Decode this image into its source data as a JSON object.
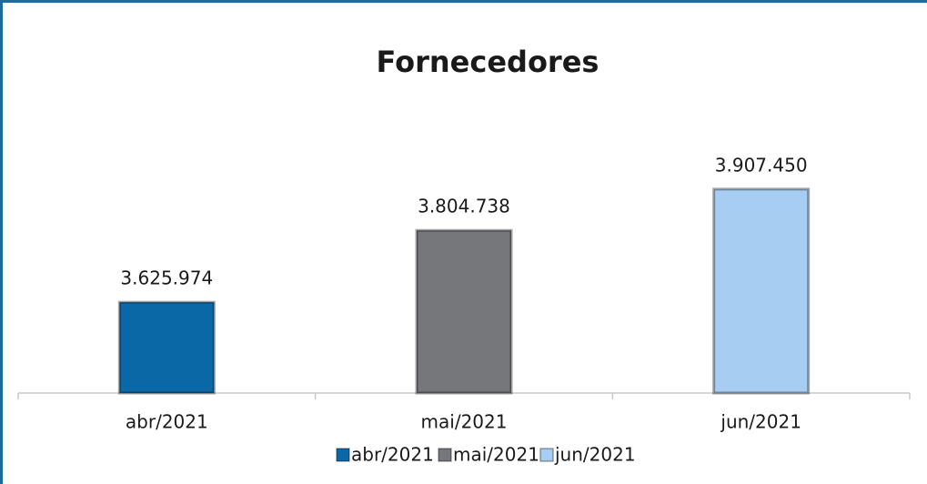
{
  "chart_data": {
    "type": "bar",
    "title": "Fornecedores",
    "categories": [
      "abr/2021",
      "mai/2021",
      "jun/2021"
    ],
    "values": [
      3625974,
      3804738,
      3907450
    ],
    "value_labels": [
      "3.625.974",
      "3.804.738",
      "3.907.450"
    ],
    "colors": [
      "#0b68a6",
      "#76777a",
      "#a8cdf2"
    ],
    "ylim": [
      3400000,
      4000000
    ],
    "legend": "bottom"
  }
}
